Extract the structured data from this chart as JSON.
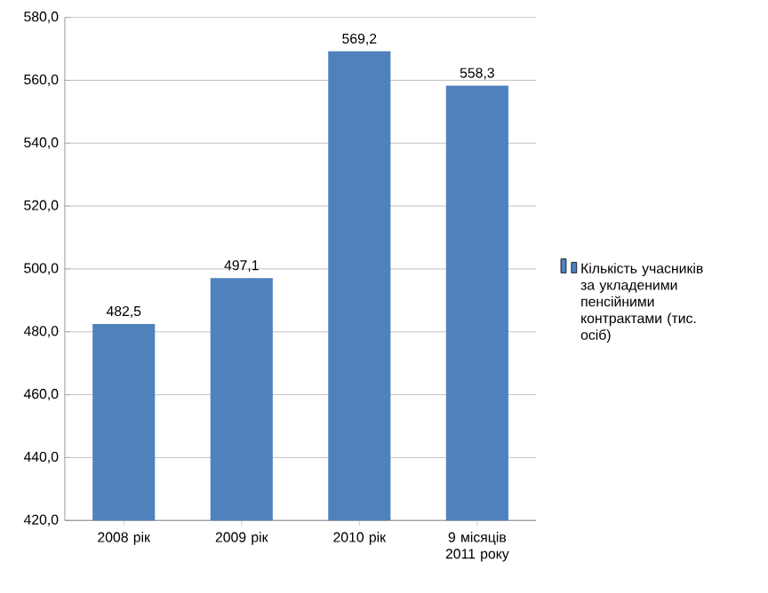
{
  "chart_data": {
    "type": "bar",
    "categories": [
      "2008 рік",
      "2009 рік",
      "2010 рік",
      "9 місяців 2011 року"
    ],
    "series": [
      {
        "name": "Кількість учасників за укладеними пенсійними контрактами (тис. осіб)",
        "color": "#4f81bd",
        "values": [
          482.5,
          497.1,
          569.2,
          558.3
        ],
        "value_labels": [
          "482,5",
          "497,1",
          "569,2",
          "558,3"
        ]
      }
    ],
    "ylim": [
      420,
      580
    ],
    "yticks": [
      {
        "value": 420,
        "label": "420,0"
      },
      {
        "value": 440,
        "label": "440,0"
      },
      {
        "value": 460,
        "label": "460,0"
      },
      {
        "value": 480,
        "label": "480,0"
      },
      {
        "value": 500,
        "label": "500,0"
      },
      {
        "value": 520,
        "label": "520,0"
      },
      {
        "value": 540,
        "label": "540,0"
      },
      {
        "value": 560,
        "label": "560,0"
      },
      {
        "value": 580,
        "label": "580,0"
      }
    ],
    "grid": "y",
    "legend": "right"
  }
}
